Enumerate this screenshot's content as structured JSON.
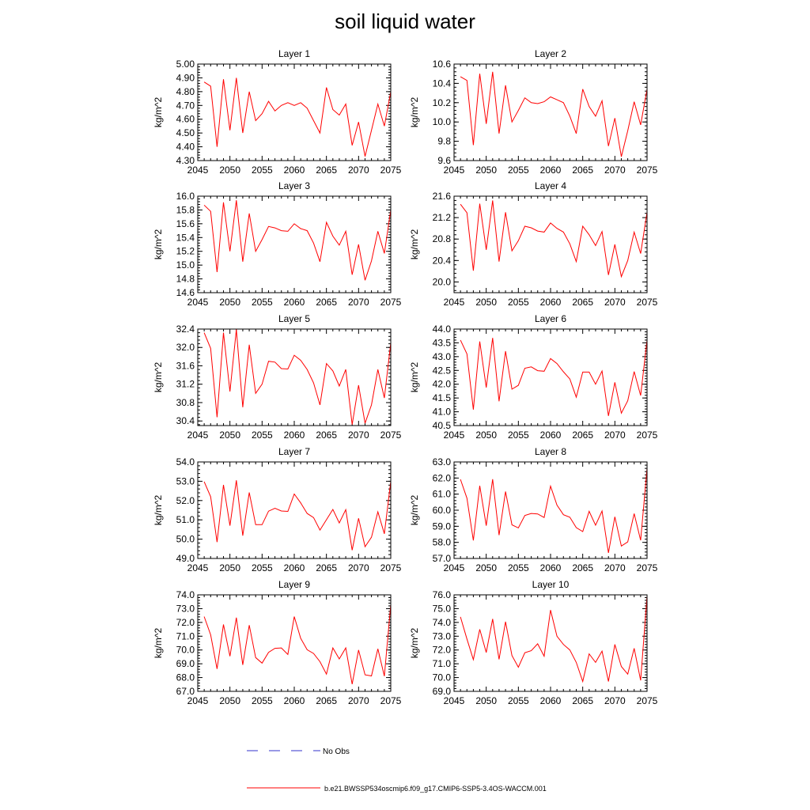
{
  "title": "soil liquid water",
  "legend": {
    "no_obs_label": "No Obs",
    "model_label": "b.e21.BWSSP534oscmip6.f09_g17.CMIP6-SSP5-3.4OS-WACCM.001",
    "no_obs_color": "#3333cc",
    "model_color": "#ff0000"
  },
  "chart_data": [
    {
      "type": "line",
      "title": "Layer 1",
      "ylabel": "kg/m^2",
      "xlabel": "",
      "xlim": [
        2045,
        2075
      ],
      "ylim": [
        4.3,
        5.0
      ],
      "xticks": [
        "2045",
        "2050",
        "2055",
        "2060",
        "2065",
        "2070",
        "2075"
      ],
      "yticks": [
        "4.30",
        "4.40",
        "4.50",
        "4.60",
        "4.70",
        "4.80",
        "4.90",
        "5.00"
      ],
      "series": [
        {
          "x": [
            2046,
            2047,
            2048,
            2049,
            2050,
            2051,
            2052,
            2053,
            2054,
            2055,
            2056,
            2057,
            2058,
            2059,
            2060,
            2061,
            2062,
            2063,
            2064,
            2065,
            2066,
            2067,
            2068,
            2069,
            2070,
            2071,
            2072,
            2073,
            2074,
            2075
          ],
          "y": [
            4.87,
            4.84,
            4.4,
            4.89,
            4.52,
            4.9,
            4.5,
            4.8,
            4.59,
            4.64,
            4.73,
            4.66,
            4.7,
            4.72,
            4.7,
            4.72,
            4.68,
            4.59,
            4.5,
            4.83,
            4.67,
            4.63,
            4.71,
            4.41,
            4.58,
            4.33,
            4.52,
            4.71,
            4.55,
            4.8
          ]
        }
      ]
    },
    {
      "type": "line",
      "title": "Layer 2",
      "ylabel": "kg/m^2",
      "xlabel": "",
      "xlim": [
        2045,
        2075
      ],
      "ylim": [
        9.6,
        10.6
      ],
      "xticks": [
        "2045",
        "2050",
        "2055",
        "2060",
        "2065",
        "2070",
        "2075"
      ],
      "yticks": [
        "9.6",
        "9.8",
        "10.0",
        "10.2",
        "10.4",
        "10.6"
      ],
      "series": [
        {
          "x": [
            2046,
            2047,
            2048,
            2049,
            2050,
            2051,
            2052,
            2053,
            2054,
            2055,
            2056,
            2057,
            2058,
            2059,
            2060,
            2061,
            2062,
            2063,
            2064,
            2065,
            2066,
            2067,
            2068,
            2069,
            2070,
            2071,
            2072,
            2073,
            2074,
            2075
          ],
          "y": [
            10.47,
            10.43,
            9.76,
            10.5,
            9.98,
            10.52,
            9.88,
            10.38,
            10.0,
            10.12,
            10.25,
            10.2,
            10.19,
            10.21,
            10.26,
            10.23,
            10.2,
            10.06,
            9.88,
            10.34,
            10.16,
            10.06,
            10.22,
            9.75,
            10.04,
            9.64,
            9.91,
            10.21,
            9.97,
            10.34
          ]
        }
      ]
    },
    {
      "type": "line",
      "title": "Layer 3",
      "ylabel": "kg/m^2",
      "xlabel": "",
      "xlim": [
        2045,
        2075
      ],
      "ylim": [
        14.6,
        16.0
      ],
      "xticks": [
        "2045",
        "2050",
        "2055",
        "2060",
        "2065",
        "2070",
        "2075"
      ],
      "yticks": [
        "14.6",
        "14.8",
        "15.0",
        "15.2",
        "15.4",
        "15.6",
        "15.8",
        "16.0"
      ],
      "series": [
        {
          "x": [
            2046,
            2047,
            2048,
            2049,
            2050,
            2051,
            2052,
            2053,
            2054,
            2055,
            2056,
            2057,
            2058,
            2059,
            2060,
            2061,
            2062,
            2063,
            2064,
            2065,
            2066,
            2067,
            2068,
            2069,
            2070,
            2071,
            2072,
            2073,
            2074,
            2075
          ],
          "y": [
            15.87,
            15.78,
            14.9,
            15.91,
            15.2,
            15.94,
            15.05,
            15.75,
            15.2,
            15.37,
            15.56,
            15.54,
            15.5,
            15.49,
            15.6,
            15.53,
            15.5,
            15.32,
            15.05,
            15.62,
            15.42,
            15.29,
            15.49,
            14.86,
            15.3,
            14.78,
            15.06,
            15.49,
            15.17,
            15.8
          ]
        }
      ]
    },
    {
      "type": "line",
      "title": "Layer 4",
      "ylabel": "kg/m^2",
      "xlabel": "",
      "xlim": [
        2045,
        2075
      ],
      "ylim": [
        19.8,
        21.6
      ],
      "xticks": [
        "2045",
        "2050",
        "2055",
        "2060",
        "2065",
        "2070",
        "2075"
      ],
      "yticks": [
        "20.0",
        "20.4",
        "20.8",
        "21.2",
        "21.6"
      ],
      "series": [
        {
          "x": [
            2046,
            2047,
            2048,
            2049,
            2050,
            2051,
            2052,
            2053,
            2054,
            2055,
            2056,
            2057,
            2058,
            2059,
            2060,
            2061,
            2062,
            2063,
            2064,
            2065,
            2066,
            2067,
            2068,
            2069,
            2070,
            2071,
            2072,
            2073,
            2074,
            2075
          ],
          "y": [
            21.45,
            21.29,
            20.21,
            21.46,
            20.6,
            21.52,
            20.38,
            21.3,
            20.58,
            20.77,
            21.04,
            21.01,
            20.95,
            20.93,
            21.1,
            21.0,
            20.93,
            20.71,
            20.38,
            21.04,
            20.88,
            20.68,
            20.94,
            20.13,
            20.7,
            20.1,
            20.4,
            20.93,
            20.53,
            21.3
          ]
        }
      ]
    },
    {
      "type": "line",
      "title": "Layer 5",
      "ylabel": "kg/m^2",
      "xlabel": "",
      "xlim": [
        2045,
        2075
      ],
      "ylim": [
        30.3,
        32.4
      ],
      "xticks": [
        "2045",
        "2050",
        "2055",
        "2060",
        "2065",
        "2070",
        "2075"
      ],
      "yticks": [
        "30.4",
        "30.8",
        "31.2",
        "31.6",
        "32.0",
        "32.4"
      ],
      "series": [
        {
          "x": [
            2046,
            2047,
            2048,
            2049,
            2050,
            2051,
            2052,
            2053,
            2054,
            2055,
            2056,
            2057,
            2058,
            2059,
            2060,
            2061,
            2062,
            2063,
            2064,
            2065,
            2066,
            2067,
            2068,
            2069,
            2070,
            2071,
            2072,
            2073,
            2074,
            2075
          ],
          "y": [
            32.32,
            31.98,
            30.48,
            32.32,
            31.04,
            32.39,
            30.7,
            32.06,
            31.0,
            31.2,
            31.7,
            31.68,
            31.54,
            31.53,
            31.83,
            31.72,
            31.52,
            31.23,
            30.75,
            31.65,
            31.49,
            31.16,
            31.52,
            30.32,
            31.18,
            30.35,
            30.75,
            31.52,
            30.9,
            32.1
          ]
        }
      ]
    },
    {
      "type": "line",
      "title": "Layer 6",
      "ylabel": "kg/m^2",
      "xlabel": "",
      "xlim": [
        2045,
        2075
      ],
      "ylim": [
        40.5,
        44.0
      ],
      "xticks": [
        "2045",
        "2050",
        "2055",
        "2060",
        "2065",
        "2070",
        "2075"
      ],
      "yticks": [
        "40.5",
        "41.0",
        "41.5",
        "42.0",
        "42.5",
        "43.0",
        "43.5",
        "44.0"
      ],
      "series": [
        {
          "x": [
            2046,
            2047,
            2048,
            2049,
            2050,
            2051,
            2052,
            2053,
            2054,
            2055,
            2056,
            2057,
            2058,
            2059,
            2060,
            2061,
            2062,
            2063,
            2064,
            2065,
            2066,
            2067,
            2068,
            2069,
            2070,
            2071,
            2072,
            2073,
            2074,
            2075
          ],
          "y": [
            43.6,
            43.1,
            41.08,
            43.55,
            41.88,
            43.68,
            41.38,
            43.2,
            41.82,
            41.96,
            42.58,
            42.63,
            42.49,
            42.47,
            42.93,
            42.75,
            42.45,
            42.19,
            41.53,
            42.44,
            42.44,
            42.0,
            42.48,
            40.85,
            42.07,
            40.95,
            41.4,
            42.46,
            41.59,
            43.6
          ]
        }
      ]
    },
    {
      "type": "line",
      "title": "Layer 7",
      "ylabel": "kg/m^2",
      "xlabel": "",
      "xlim": [
        2045,
        2075
      ],
      "ylim": [
        49.0,
        54.0
      ],
      "xticks": [
        "2045",
        "2050",
        "2055",
        "2060",
        "2065",
        "2070",
        "2075"
      ],
      "yticks": [
        "49.0",
        "50.0",
        "51.0",
        "52.0",
        "53.0",
        "54.0"
      ],
      "series": [
        {
          "x": [
            2046,
            2047,
            2048,
            2049,
            2050,
            2051,
            2052,
            2053,
            2054,
            2055,
            2056,
            2057,
            2058,
            2059,
            2060,
            2061,
            2062,
            2063,
            2064,
            2065,
            2066,
            2067,
            2068,
            2069,
            2070,
            2071,
            2072,
            2073,
            2074,
            2075
          ],
          "y": [
            52.98,
            52.2,
            49.85,
            52.81,
            50.7,
            53.05,
            50.18,
            52.42,
            50.75,
            50.75,
            51.45,
            51.6,
            51.46,
            51.44,
            52.34,
            51.88,
            51.33,
            51.12,
            50.47,
            51.01,
            51.54,
            50.84,
            51.53,
            49.43,
            51.08,
            49.61,
            50.1,
            51.42,
            50.28,
            53.0
          ]
        }
      ]
    },
    {
      "type": "line",
      "title": "Layer 8",
      "ylabel": "kg/m^2",
      "xlabel": "",
      "xlim": [
        2045,
        2075
      ],
      "ylim": [
        57.0,
        63.0
      ],
      "xticks": [
        "2045",
        "2050",
        "2055",
        "2060",
        "2065",
        "2070",
        "2075"
      ],
      "yticks": [
        "57.0",
        "58.0",
        "59.0",
        "60.0",
        "61.0",
        "62.0",
        "63.0"
      ],
      "series": [
        {
          "x": [
            2046,
            2047,
            2048,
            2049,
            2050,
            2051,
            2052,
            2053,
            2054,
            2055,
            2056,
            2057,
            2058,
            2059,
            2060,
            2061,
            2062,
            2063,
            2064,
            2065,
            2066,
            2067,
            2068,
            2069,
            2070,
            2071,
            2072,
            2073,
            2074,
            2075
          ],
          "y": [
            61.92,
            60.75,
            58.12,
            61.52,
            59.04,
            61.93,
            58.45,
            61.16,
            59.09,
            58.9,
            59.67,
            59.8,
            59.77,
            59.55,
            61.5,
            60.32,
            59.72,
            59.56,
            58.92,
            58.67,
            59.93,
            59.07,
            59.95,
            57.35,
            59.59,
            57.77,
            58.03,
            59.79,
            58.13,
            62.6
          ]
        }
      ]
    },
    {
      "type": "line",
      "title": "Layer 9",
      "ylabel": "kg/m^2",
      "xlabel": "",
      "xlim": [
        2045,
        2075
      ],
      "ylim": [
        67.0,
        74.0
      ],
      "xticks": [
        "2045",
        "2050",
        "2055",
        "2060",
        "2065",
        "2070",
        "2075"
      ],
      "yticks": [
        "67.0",
        "68.0",
        "69.0",
        "70.0",
        "71.0",
        "72.0",
        "73.0",
        "74.0"
      ],
      "series": [
        {
          "x": [
            2046,
            2047,
            2048,
            2049,
            2050,
            2051,
            2052,
            2053,
            2054,
            2055,
            2056,
            2057,
            2058,
            2059,
            2060,
            2061,
            2062,
            2063,
            2064,
            2065,
            2066,
            2067,
            2068,
            2069,
            2070,
            2071,
            2072,
            2073,
            2074,
            2075
          ],
          "y": [
            72.42,
            71.1,
            68.63,
            71.85,
            69.55,
            72.35,
            68.92,
            71.8,
            69.45,
            69.05,
            69.83,
            70.12,
            70.15,
            69.68,
            72.42,
            70.85,
            70.02,
            69.75,
            69.15,
            68.25,
            70.15,
            69.35,
            70.15,
            67.52,
            70.0,
            68.2,
            68.12,
            70.08,
            68.1,
            73.3
          ]
        }
      ]
    },
    {
      "type": "line",
      "title": "Layer 10",
      "ylabel": "kg/m^2",
      "xlabel": "",
      "xlim": [
        2045,
        2075
      ],
      "ylim": [
        69.0,
        76.0
      ],
      "xticks": [
        "2045",
        "2050",
        "2055",
        "2060",
        "2065",
        "2070",
        "2075"
      ],
      "yticks": [
        "69.0",
        "70.0",
        "71.0",
        "72.0",
        "73.0",
        "74.0",
        "75.0",
        "76.0"
      ],
      "series": [
        {
          "x": [
            2046,
            2047,
            2048,
            2049,
            2050,
            2051,
            2052,
            2053,
            2054,
            2055,
            2056,
            2057,
            2058,
            2059,
            2060,
            2061,
            2062,
            2063,
            2064,
            2065,
            2066,
            2067,
            2068,
            2069,
            2070,
            2071,
            2072,
            2073,
            2074,
            2075
          ],
          "y": [
            74.4,
            72.8,
            71.3,
            73.5,
            71.82,
            74.25,
            71.32,
            74.05,
            71.6,
            70.75,
            71.8,
            71.95,
            72.45,
            71.55,
            74.9,
            73.0,
            72.4,
            72.0,
            71.1,
            69.72,
            71.72,
            71.1,
            71.92,
            69.72,
            72.4,
            70.8,
            70.25,
            72.12,
            69.8,
            75.9
          ]
        }
      ]
    }
  ]
}
